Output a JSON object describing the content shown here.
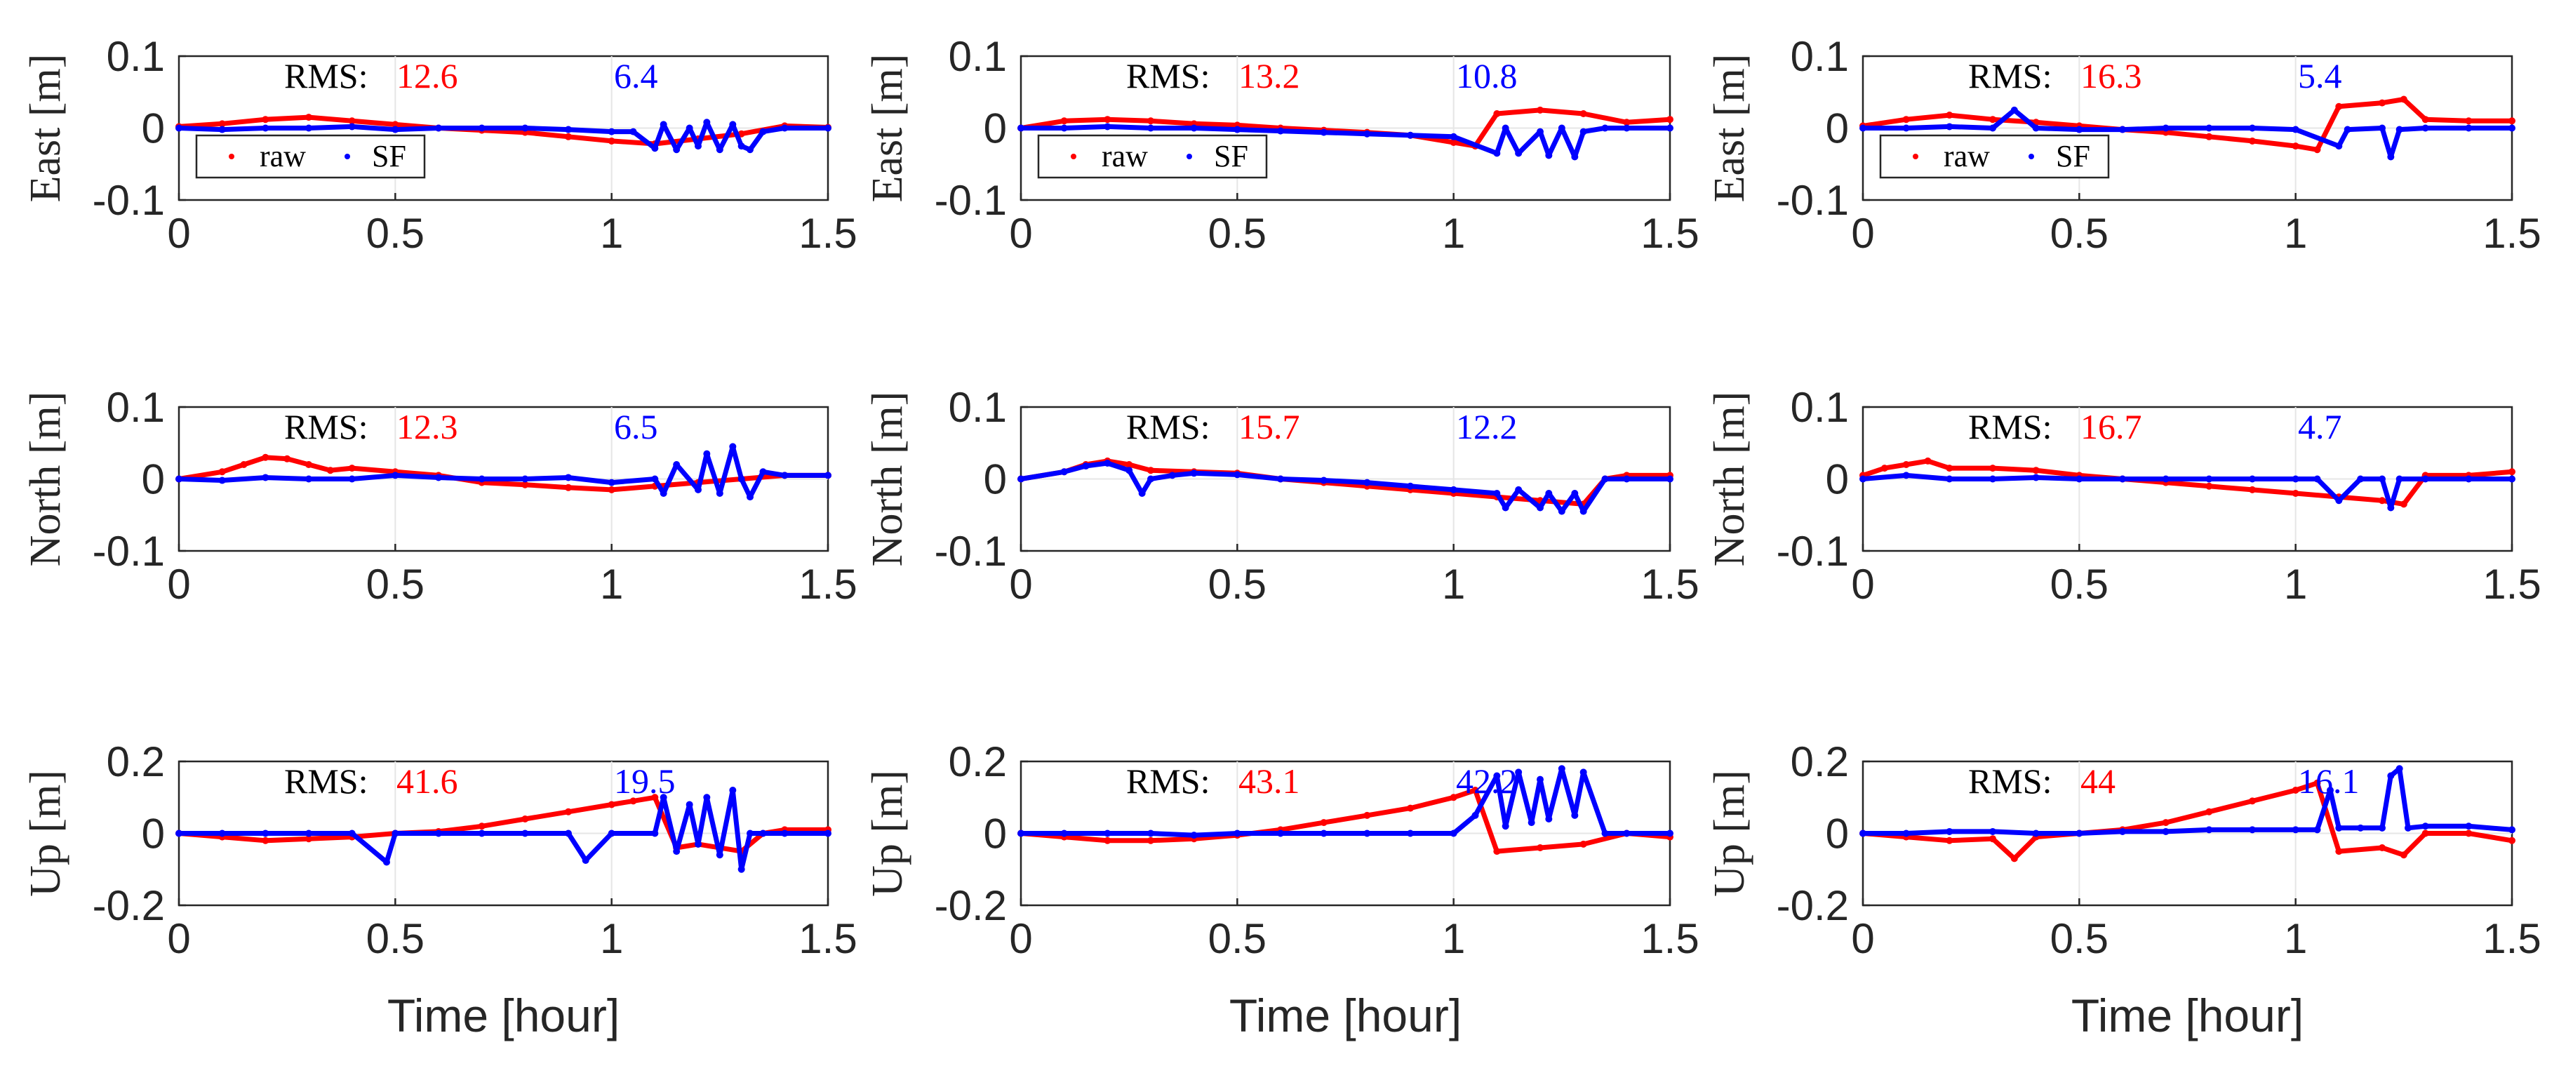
{
  "colors": {
    "raw": "#ff0000",
    "sf": "#0000ff",
    "axis": "#262626",
    "grid": "#e6e6e6"
  },
  "chart_data": [
    {
      "type": "scatter",
      "col": 0,
      "row": 0,
      "ylabel": "East [m]",
      "xlabel": "",
      "xlim": [
        0,
        1.5
      ],
      "ylim": [
        -0.1,
        0.1
      ],
      "xticks": [
        "0",
        "0.5",
        "1",
        "1.5"
      ],
      "yticks": [
        "0.1",
        "0",
        "-0.1"
      ],
      "rms_label": "RMS:",
      "rms_raw": "12.6",
      "rms_sf": "6.4",
      "legend": [
        "raw",
        "SF"
      ],
      "series": [
        {
          "name": "raw",
          "x": [
            0,
            0.1,
            0.2,
            0.3,
            0.4,
            0.5,
            0.6,
            0.7,
            0.8,
            0.9,
            1.0,
            1.1,
            1.2,
            1.3,
            1.4,
            1.5
          ],
          "y": [
            0.002,
            0.006,
            0.012,
            0.015,
            0.01,
            0.005,
            0.0,
            -0.003,
            -0.006,
            -0.012,
            -0.018,
            -0.022,
            -0.015,
            -0.008,
            0.003,
            0.001
          ]
        },
        {
          "name": "SF",
          "x": [
            0,
            0.1,
            0.2,
            0.3,
            0.4,
            0.5,
            0.6,
            0.7,
            0.8,
            0.9,
            1.0,
            1.05,
            1.1,
            1.12,
            1.15,
            1.18,
            1.2,
            1.22,
            1.25,
            1.28,
            1.3,
            1.32,
            1.35,
            1.4,
            1.5
          ],
          "y": [
            0.0,
            -0.002,
            0.0,
            0.0,
            0.002,
            -0.002,
            0.0,
            0.0,
            0.0,
            -0.002,
            -0.005,
            -0.005,
            -0.028,
            0.005,
            -0.03,
            0.0,
            -0.025,
            0.008,
            -0.03,
            0.005,
            -0.025,
            -0.03,
            -0.005,
            0.0,
            0.0
          ]
        }
      ]
    },
    {
      "type": "scatter",
      "col": 1,
      "row": 0,
      "ylabel": "East [m]",
      "xlabel": "",
      "xlim": [
        0,
        1.5
      ],
      "ylim": [
        -0.1,
        0.1
      ],
      "xticks": [
        "0",
        "0.5",
        "1",
        "1.5"
      ],
      "yticks": [
        "0.1",
        "0",
        "-0.1"
      ],
      "rms_label": "RMS:",
      "rms_raw": "13.2",
      "rms_sf": "10.8",
      "legend": [
        "raw",
        "SF"
      ],
      "series": [
        {
          "name": "raw",
          "x": [
            0,
            0.1,
            0.2,
            0.3,
            0.4,
            0.5,
            0.6,
            0.7,
            0.8,
            0.9,
            1.0,
            1.05,
            1.1,
            1.2,
            1.3,
            1.4,
            1.5
          ],
          "y": [
            0.0,
            0.01,
            0.012,
            0.01,
            0.006,
            0.004,
            0.0,
            -0.003,
            -0.006,
            -0.01,
            -0.02,
            -0.025,
            0.02,
            0.025,
            0.02,
            0.008,
            0.012
          ]
        },
        {
          "name": "SF",
          "x": [
            0,
            0.1,
            0.2,
            0.3,
            0.4,
            0.5,
            0.6,
            0.7,
            0.8,
            0.9,
            1.0,
            1.1,
            1.12,
            1.15,
            1.2,
            1.22,
            1.25,
            1.28,
            1.3,
            1.35,
            1.4,
            1.5
          ],
          "y": [
            0.0,
            0.0,
            0.002,
            0.0,
            0.0,
            -0.002,
            -0.004,
            -0.006,
            -0.008,
            -0.01,
            -0.012,
            -0.035,
            0.0,
            -0.035,
            -0.005,
            -0.038,
            0.0,
            -0.04,
            -0.005,
            0.0,
            0.0,
            0.0
          ]
        }
      ]
    },
    {
      "type": "scatter",
      "col": 2,
      "row": 0,
      "ylabel": "East [m]",
      "xlabel": "",
      "xlim": [
        0,
        1.5
      ],
      "ylim": [
        -0.1,
        0.1
      ],
      "xticks": [
        "0",
        "0.5",
        "1",
        "1.5"
      ],
      "yticks": [
        "0.1",
        "0",
        "-0.1"
      ],
      "rms_label": "RMS:",
      "rms_raw": "16.3",
      "rms_sf": "5.4",
      "legend": [
        "raw",
        "SF"
      ],
      "series": [
        {
          "name": "raw",
          "x": [
            0,
            0.1,
            0.2,
            0.3,
            0.4,
            0.5,
            0.6,
            0.7,
            0.8,
            0.9,
            1.0,
            1.05,
            1.1,
            1.2,
            1.25,
            1.3,
            1.4,
            1.5
          ],
          "y": [
            0.003,
            0.012,
            0.018,
            0.012,
            0.008,
            0.003,
            -0.002,
            -0.006,
            -0.012,
            -0.018,
            -0.025,
            -0.03,
            0.03,
            0.035,
            0.04,
            0.012,
            0.01,
            0.01
          ]
        },
        {
          "name": "SF",
          "x": [
            0,
            0.1,
            0.2,
            0.3,
            0.35,
            0.4,
            0.5,
            0.6,
            0.7,
            0.8,
            0.9,
            1.0,
            1.1,
            1.12,
            1.2,
            1.22,
            1.24,
            1.3,
            1.4,
            1.5
          ],
          "y": [
            0.0,
            0.0,
            0.002,
            0.0,
            0.025,
            0.0,
            -0.002,
            -0.002,
            0.0,
            0.0,
            0.0,
            -0.002,
            -0.025,
            -0.002,
            0.0,
            -0.04,
            -0.002,
            0.0,
            0.0,
            0.0
          ]
        }
      ]
    },
    {
      "type": "scatter",
      "col": 0,
      "row": 1,
      "ylabel": "North [m]",
      "xlabel": "",
      "xlim": [
        0,
        1.5
      ],
      "ylim": [
        -0.1,
        0.1
      ],
      "xticks": [
        "0",
        "0.5",
        "1",
        "1.5"
      ],
      "yticks": [
        "0.1",
        "0",
        "-0.1"
      ],
      "rms_label": "RMS:",
      "rms_raw": "12.3",
      "rms_sf": "6.5",
      "legend": [],
      "series": [
        {
          "name": "raw",
          "x": [
            0,
            0.1,
            0.15,
            0.2,
            0.25,
            0.3,
            0.35,
            0.4,
            0.5,
            0.6,
            0.7,
            0.8,
            0.9,
            1.0,
            1.1,
            1.2,
            1.3,
            1.4,
            1.5
          ],
          "y": [
            0.0,
            0.01,
            0.02,
            0.03,
            0.028,
            0.02,
            0.012,
            0.015,
            0.01,
            0.005,
            -0.005,
            -0.008,
            -0.012,
            -0.015,
            -0.01,
            -0.005,
            0.0,
            0.005,
            0.005
          ]
        },
        {
          "name": "SF",
          "x": [
            0,
            0.1,
            0.2,
            0.3,
            0.4,
            0.5,
            0.6,
            0.7,
            0.8,
            0.9,
            1.0,
            1.1,
            1.12,
            1.15,
            1.2,
            1.22,
            1.25,
            1.28,
            1.3,
            1.32,
            1.35,
            1.4,
            1.5
          ],
          "y": [
            0.0,
            -0.002,
            0.002,
            0.0,
            0.0,
            0.005,
            0.002,
            0.0,
            0.0,
            0.002,
            -0.005,
            0.0,
            -0.02,
            0.02,
            -0.015,
            0.035,
            -0.02,
            0.045,
            0.0,
            -0.025,
            0.01,
            0.005,
            0.005
          ]
        }
      ]
    },
    {
      "type": "scatter",
      "col": 1,
      "row": 1,
      "ylabel": "North [m]",
      "xlabel": "",
      "xlim": [
        0,
        1.5
      ],
      "ylim": [
        -0.1,
        0.1
      ],
      "xticks": [
        "0",
        "0.5",
        "1",
        "1.5"
      ],
      "yticks": [
        "0.1",
        "0",
        "-0.1"
      ],
      "rms_label": "RMS:",
      "rms_raw": "15.7",
      "rms_sf": "12.2",
      "legend": [],
      "series": [
        {
          "name": "raw",
          "x": [
            0,
            0.1,
            0.15,
            0.2,
            0.25,
            0.3,
            0.4,
            0.5,
            0.6,
            0.7,
            0.8,
            0.9,
            1.0,
            1.1,
            1.2,
            1.3,
            1.35,
            1.4,
            1.5
          ],
          "y": [
            0.0,
            0.01,
            0.02,
            0.025,
            0.02,
            0.012,
            0.01,
            0.008,
            0.0,
            -0.005,
            -0.01,
            -0.015,
            -0.02,
            -0.025,
            -0.03,
            -0.035,
            0.0,
            0.005,
            0.005
          ]
        },
        {
          "name": "SF",
          "x": [
            0,
            0.1,
            0.15,
            0.2,
            0.25,
            0.28,
            0.3,
            0.35,
            0.4,
            0.5,
            0.6,
            0.7,
            0.8,
            0.9,
            1.0,
            1.1,
            1.12,
            1.15,
            1.2,
            1.22,
            1.25,
            1.28,
            1.3,
            1.35,
            1.4,
            1.5
          ],
          "y": [
            0.0,
            0.01,
            0.018,
            0.022,
            0.012,
            -0.02,
            0.0,
            0.005,
            0.008,
            0.006,
            0.0,
            -0.002,
            -0.005,
            -0.01,
            -0.015,
            -0.02,
            -0.04,
            -0.015,
            -0.04,
            -0.02,
            -0.045,
            -0.02,
            -0.045,
            0.0,
            0.0,
            0.0
          ]
        }
      ]
    },
    {
      "type": "scatter",
      "col": 2,
      "row": 1,
      "ylabel": "North [m]",
      "xlabel": "",
      "xlim": [
        0,
        1.5
      ],
      "ylim": [
        -0.1,
        0.1
      ],
      "xticks": [
        "0",
        "0.5",
        "1",
        "1.5"
      ],
      "yticks": [
        "0.1",
        "0",
        "-0.1"
      ],
      "rms_label": "RMS:",
      "rms_raw": "16.7",
      "rms_sf": "4.7",
      "legend": [],
      "series": [
        {
          "name": "raw",
          "x": [
            0,
            0.05,
            0.1,
            0.15,
            0.2,
            0.3,
            0.4,
            0.5,
            0.6,
            0.7,
            0.8,
            0.9,
            1.0,
            1.1,
            1.2,
            1.25,
            1.3,
            1.4,
            1.5
          ],
          "y": [
            0.005,
            0.015,
            0.02,
            0.025,
            0.015,
            0.015,
            0.012,
            0.005,
            0.0,
            -0.005,
            -0.01,
            -0.015,
            -0.02,
            -0.025,
            -0.03,
            -0.035,
            0.005,
            0.005,
            0.01
          ]
        },
        {
          "name": "SF",
          "x": [
            0,
            0.1,
            0.2,
            0.3,
            0.4,
            0.5,
            0.6,
            0.7,
            0.8,
            0.9,
            1.0,
            1.05,
            1.1,
            1.15,
            1.2,
            1.22,
            1.24,
            1.3,
            1.4,
            1.5
          ],
          "y": [
            0.0,
            0.005,
            0.0,
            0.0,
            0.002,
            0.0,
            0.0,
            0.0,
            0.0,
            0.0,
            0.0,
            0.0,
            -0.03,
            0.0,
            0.0,
            -0.04,
            0.0,
            0.0,
            0.0,
            0.0
          ]
        }
      ]
    },
    {
      "type": "scatter",
      "col": 0,
      "row": 2,
      "ylabel": "Up [m]",
      "xlabel": "Time [hour]",
      "xlim": [
        0,
        1.5
      ],
      "ylim": [
        -0.2,
        0.2
      ],
      "xticks": [
        "0",
        "0.5",
        "1",
        "1.5"
      ],
      "yticks": [
        "0.2",
        "0",
        "-0.2"
      ],
      "rms_label": "RMS:",
      "rms_raw": "41.6",
      "rms_sf": "19.5",
      "legend": [],
      "series": [
        {
          "name": "raw",
          "x": [
            0,
            0.1,
            0.2,
            0.3,
            0.4,
            0.5,
            0.6,
            0.7,
            0.8,
            0.9,
            1.0,
            1.05,
            1.1,
            1.15,
            1.2,
            1.3,
            1.35,
            1.4,
            1.5
          ],
          "y": [
            0.0,
            -0.01,
            -0.02,
            -0.015,
            -0.01,
            0.0,
            0.005,
            0.02,
            0.04,
            0.06,
            0.08,
            0.09,
            0.1,
            -0.04,
            -0.03,
            -0.05,
            0.0,
            0.01,
            0.01
          ]
        },
        {
          "name": "SF",
          "x": [
            0,
            0.1,
            0.2,
            0.3,
            0.4,
            0.48,
            0.5,
            0.6,
            0.7,
            0.8,
            0.9,
            0.94,
            1.0,
            1.1,
            1.12,
            1.15,
            1.18,
            1.2,
            1.22,
            1.25,
            1.28,
            1.3,
            1.32,
            1.35,
            1.4,
            1.5
          ],
          "y": [
            0.0,
            0.0,
            0.0,
            0.0,
            0.0,
            -0.08,
            0.0,
            0.0,
            0.0,
            0.0,
            0.0,
            -0.075,
            0.0,
            0.0,
            0.1,
            -0.05,
            0.08,
            -0.03,
            0.1,
            -0.06,
            0.12,
            -0.1,
            0.0,
            0.0,
            0.0,
            0.0
          ]
        }
      ]
    },
    {
      "type": "scatter",
      "col": 1,
      "row": 2,
      "ylabel": "Up [m]",
      "xlabel": "Time [hour]",
      "xlim": [
        0,
        1.5
      ],
      "ylim": [
        -0.2,
        0.2
      ],
      "xticks": [
        "0",
        "0.5",
        "1",
        "1.5"
      ],
      "yticks": [
        "0.2",
        "0",
        "-0.2"
      ],
      "rms_label": "RMS:",
      "rms_raw": "43.1",
      "rms_sf": "42.2",
      "legend": [],
      "series": [
        {
          "name": "raw",
          "x": [
            0,
            0.1,
            0.2,
            0.3,
            0.4,
            0.5,
            0.6,
            0.7,
            0.8,
            0.9,
            1.0,
            1.05,
            1.1,
            1.2,
            1.3,
            1.4,
            1.5
          ],
          "y": [
            0.0,
            -0.01,
            -0.02,
            -0.02,
            -0.015,
            -0.005,
            0.01,
            0.03,
            0.05,
            0.07,
            0.1,
            0.12,
            -0.05,
            -0.04,
            -0.03,
            0.0,
            -0.01
          ]
        },
        {
          "name": "SF",
          "x": [
            0,
            0.1,
            0.2,
            0.3,
            0.4,
            0.5,
            0.6,
            0.7,
            0.8,
            0.9,
            1.0,
            1.05,
            1.1,
            1.12,
            1.15,
            1.18,
            1.2,
            1.22,
            1.25,
            1.28,
            1.3,
            1.35,
            1.4,
            1.5
          ],
          "y": [
            0.0,
            0.0,
            0.0,
            0.0,
            -0.005,
            0.0,
            0.0,
            0.0,
            0.0,
            0.0,
            0.0,
            0.05,
            0.16,
            0.02,
            0.17,
            0.03,
            0.15,
            0.04,
            0.18,
            0.05,
            0.17,
            0.0,
            0.0,
            0.0
          ]
        }
      ]
    },
    {
      "type": "scatter",
      "col": 2,
      "row": 2,
      "ylabel": "Up [m]",
      "xlabel": "Time [hour]",
      "xlim": [
        0,
        1.5
      ],
      "ylim": [
        -0.2,
        0.2
      ],
      "xticks": [
        "0",
        "0.5",
        "1",
        "1.5"
      ],
      "yticks": [
        "0.2",
        "0",
        "-0.2"
      ],
      "rms_label": "RMS:",
      "rms_raw": "44",
      "rms_sf": "16.1",
      "legend": [],
      "series": [
        {
          "name": "raw",
          "x": [
            0,
            0.1,
            0.2,
            0.3,
            0.35,
            0.4,
            0.5,
            0.6,
            0.7,
            0.8,
            0.9,
            1.0,
            1.05,
            1.1,
            1.2,
            1.25,
            1.3,
            1.4,
            1.5
          ],
          "y": [
            0.0,
            -0.01,
            -0.02,
            -0.015,
            -0.07,
            -0.01,
            0.0,
            0.01,
            0.03,
            0.06,
            0.09,
            0.12,
            0.14,
            -0.05,
            -0.04,
            -0.06,
            0.0,
            0.0,
            -0.02
          ]
        },
        {
          "name": "SF",
          "x": [
            0,
            0.1,
            0.2,
            0.3,
            0.4,
            0.5,
            0.6,
            0.7,
            0.8,
            0.9,
            1.0,
            1.05,
            1.08,
            1.1,
            1.15,
            1.2,
            1.22,
            1.24,
            1.26,
            1.3,
            1.4,
            1.5
          ],
          "y": [
            0.0,
            0.0,
            0.005,
            0.005,
            0.0,
            0.0,
            0.005,
            0.005,
            0.01,
            0.01,
            0.01,
            0.01,
            0.12,
            0.015,
            0.015,
            0.015,
            0.16,
            0.18,
            0.015,
            0.02,
            0.02,
            0.01
          ]
        }
      ]
    }
  ]
}
